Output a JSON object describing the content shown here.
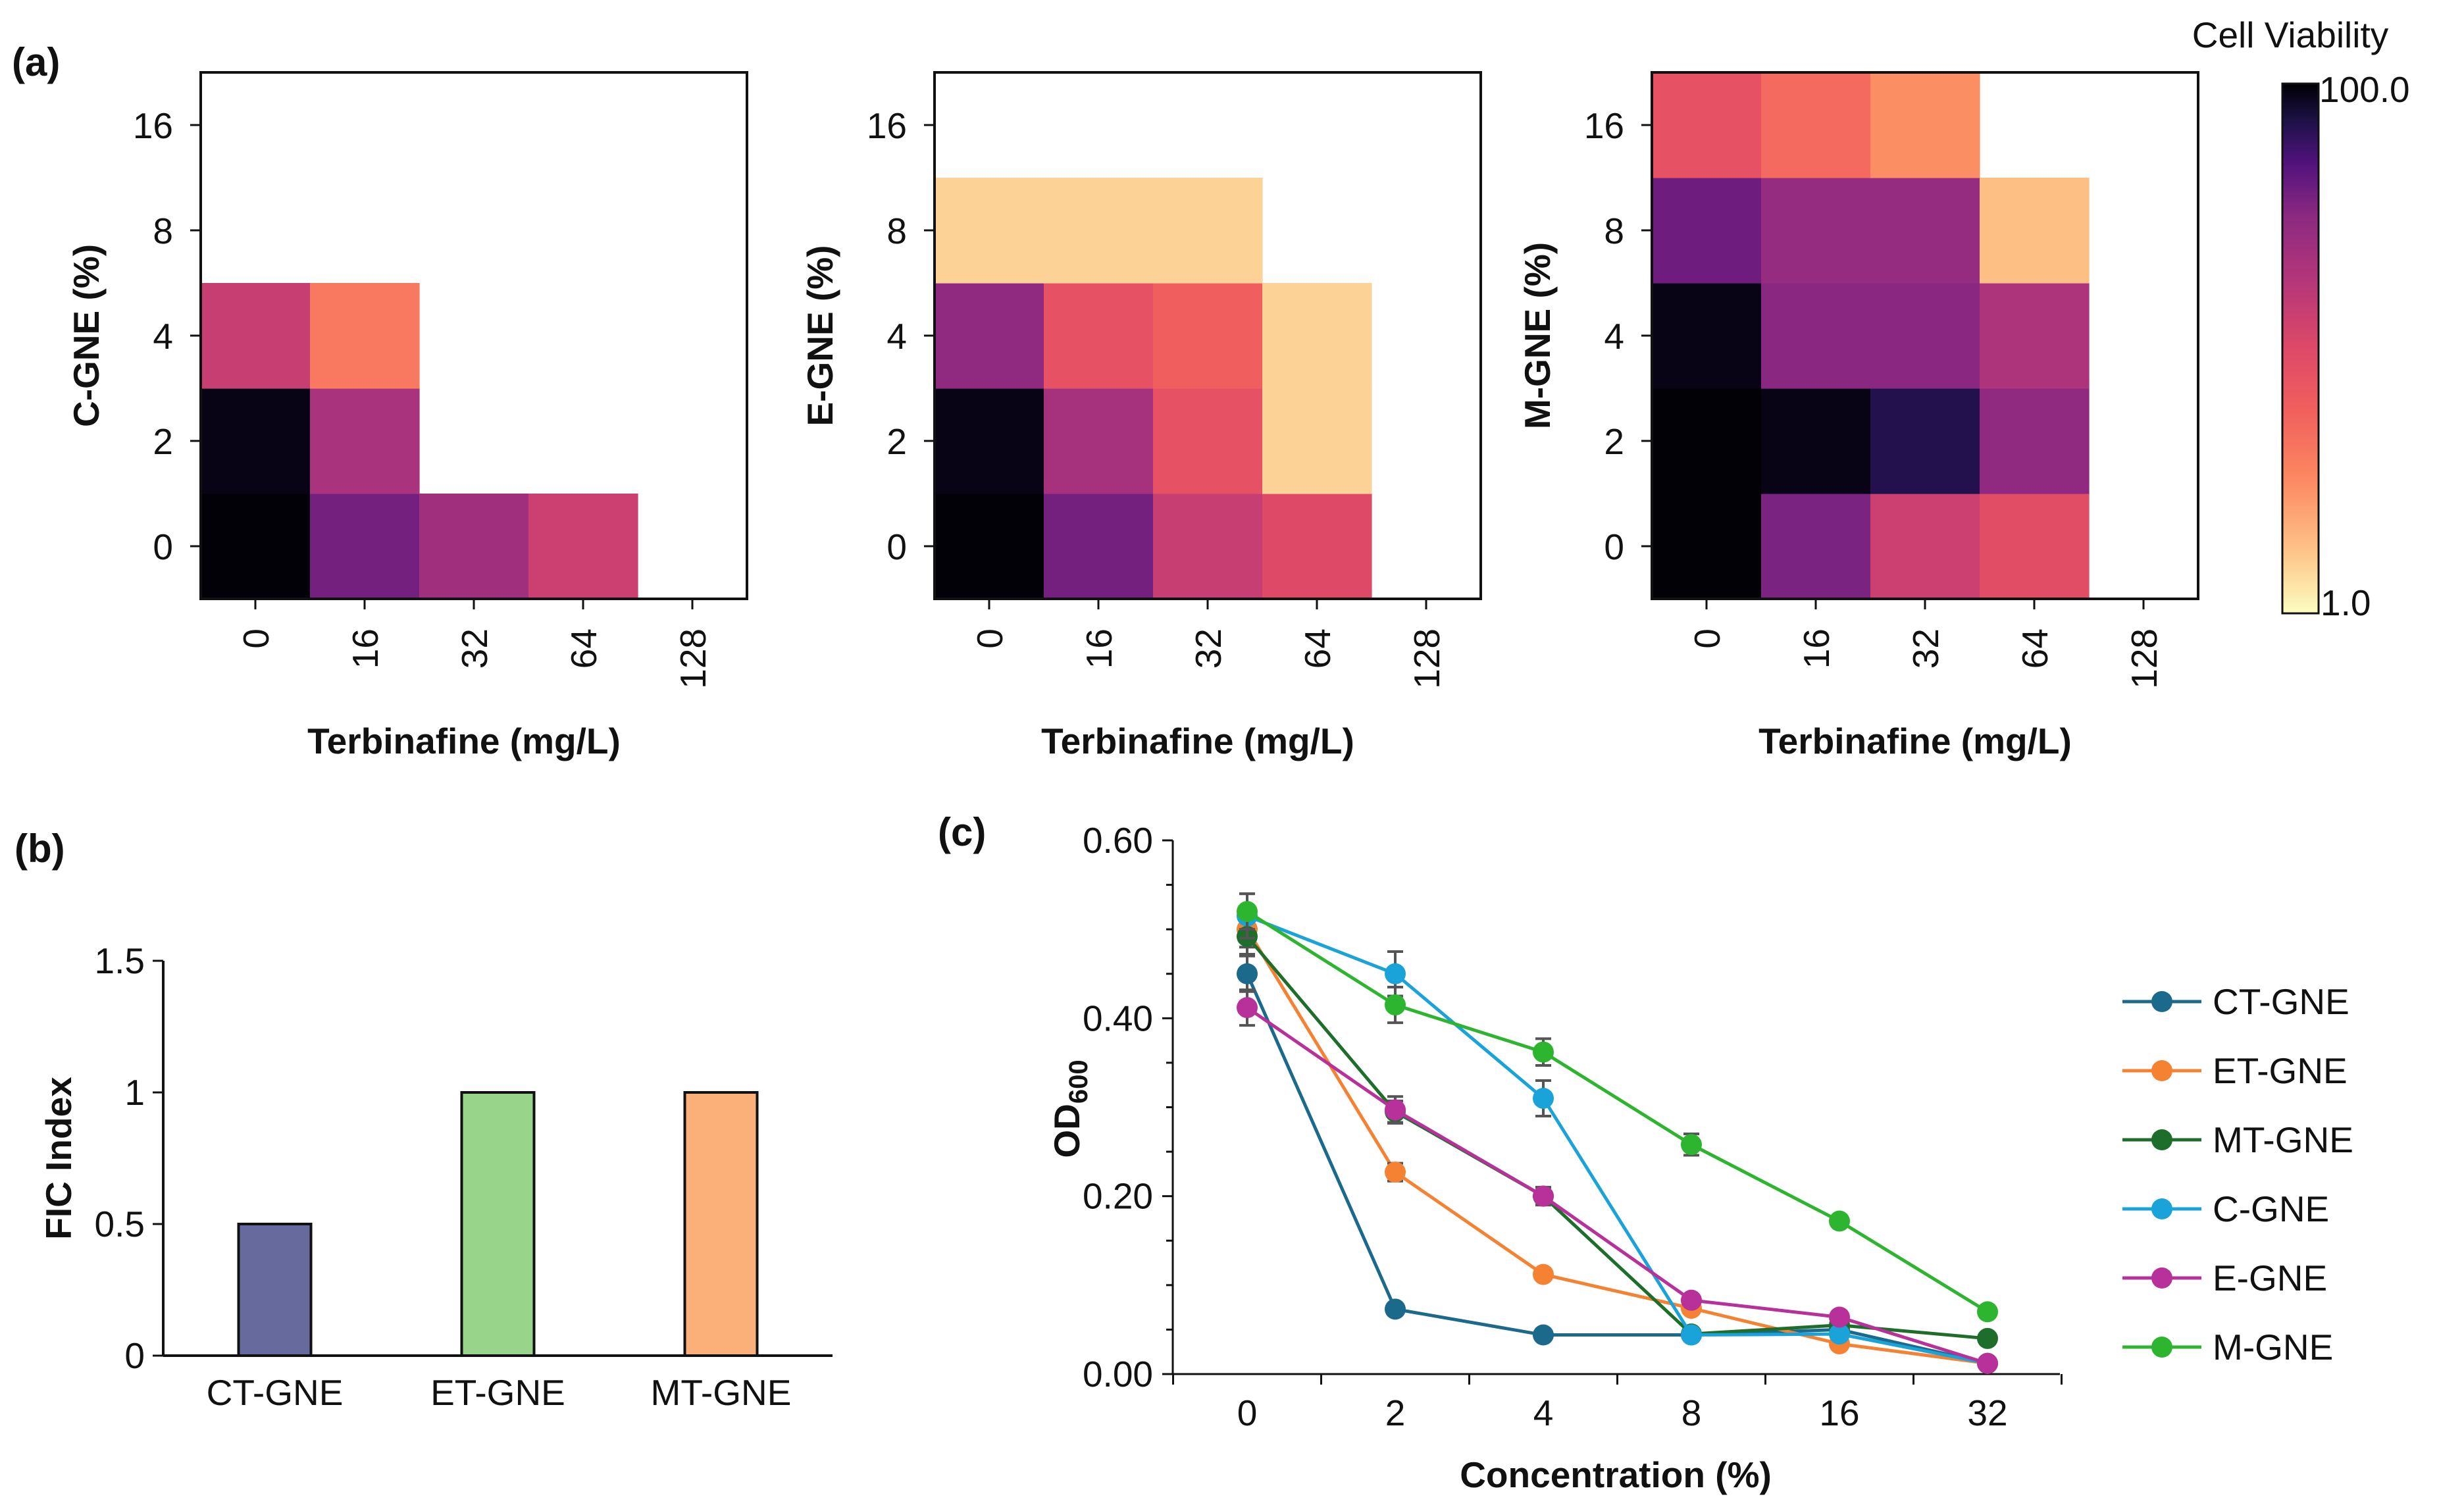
{
  "colors": {
    "ct": "#1b6a8c",
    "et": "#f58233",
    "mt": "#1e6e2b",
    "c": "#1aa3d8",
    "e": "#b8309a",
    "m": "#2db52f",
    "bar_ct": "#666a9c",
    "bar_et": "#98d48a",
    "bar_mt": "#fbb07a",
    "err": "#555555"
  },
  "panel_labels": {
    "a": "(a)",
    "b": "(b)",
    "c": "(c)"
  },
  "colorbar": {
    "title": "Cell Viability",
    "max_label": "100.0",
    "min_label": "1.0",
    "colormap": "magma"
  },
  "chart_data": [
    {
      "id": "heatmap-c",
      "type": "heatmap",
      "xlabel": "Terbinafine (mg/L)",
      "ylabel": "C-GNE (%)",
      "x_ticks": [
        "0",
        "16",
        "32",
        "64",
        "128"
      ],
      "y_ticks": [
        "0",
        "2",
        "4",
        "8",
        "16"
      ],
      "value_scale": [
        1,
        100
      ],
      "cells": [
        {
          "x": 0,
          "y": 0,
          "v": 98
        },
        {
          "x": 1,
          "y": 0,
          "v": 38
        },
        {
          "x": 2,
          "y": 0,
          "v": 24
        },
        {
          "x": 3,
          "y": 0,
          "v": 13
        },
        {
          "x": 0,
          "y": 1,
          "v": 92
        },
        {
          "x": 1,
          "y": 1,
          "v": 21
        },
        {
          "x": 0,
          "y": 2,
          "v": 14
        },
        {
          "x": 1,
          "y": 2,
          "v": 4
        }
      ]
    },
    {
      "id": "heatmap-e",
      "type": "heatmap",
      "xlabel": "Terbinafine (mg/L)",
      "ylabel": "E-GNE (%)",
      "x_ticks": [
        "0",
        "16",
        "32",
        "64",
        "128"
      ],
      "y_ticks": [
        "0",
        "2",
        "4",
        "8",
        "16"
      ],
      "value_scale": [
        1,
        100
      ],
      "cells": [
        {
          "x": 0,
          "y": 0,
          "v": 98
        },
        {
          "x": 1,
          "y": 0,
          "v": 38
        },
        {
          "x": 2,
          "y": 0,
          "v": 14
        },
        {
          "x": 3,
          "y": 0,
          "v": 10
        },
        {
          "x": 0,
          "y": 1,
          "v": 92
        },
        {
          "x": 1,
          "y": 1,
          "v": 22
        },
        {
          "x": 2,
          "y": 1,
          "v": 8
        },
        {
          "x": 3,
          "y": 1,
          "v": 1.5
        },
        {
          "x": 0,
          "y": 2,
          "v": 30
        },
        {
          "x": 1,
          "y": 2,
          "v": 8
        },
        {
          "x": 2,
          "y": 2,
          "v": 6
        },
        {
          "x": 3,
          "y": 2,
          "v": 1.5
        },
        {
          "x": 0,
          "y": 3,
          "v": 1.5
        },
        {
          "x": 1,
          "y": 3,
          "v": 1.5
        },
        {
          "x": 2,
          "y": 3,
          "v": 1.5
        }
      ]
    },
    {
      "id": "heatmap-m",
      "type": "heatmap",
      "xlabel": "Terbinafine (mg/L)",
      "ylabel": "M-GNE (%)",
      "x_ticks": [
        "0",
        "16",
        "32",
        "64",
        "128"
      ],
      "y_ticks": [
        "0",
        "2",
        "4",
        "8",
        "16"
      ],
      "value_scale": [
        1,
        100
      ],
      "cells": [
        {
          "x": 0,
          "y": 0,
          "v": 99
        },
        {
          "x": 1,
          "y": 0,
          "v": 36
        },
        {
          "x": 2,
          "y": 0,
          "v": 13
        },
        {
          "x": 3,
          "y": 0,
          "v": 9
        },
        {
          "x": 0,
          "y": 1,
          "v": 99
        },
        {
          "x": 1,
          "y": 1,
          "v": 92
        },
        {
          "x": 2,
          "y": 1,
          "v": 70
        },
        {
          "x": 3,
          "y": 1,
          "v": 30
        },
        {
          "x": 0,
          "y": 2,
          "v": 92
        },
        {
          "x": 1,
          "y": 2,
          "v": 32
        },
        {
          "x": 2,
          "y": 2,
          "v": 32
        },
        {
          "x": 3,
          "y": 2,
          "v": 20
        },
        {
          "x": 0,
          "y": 3,
          "v": 40
        },
        {
          "x": 1,
          "y": 3,
          "v": 28
        },
        {
          "x": 2,
          "y": 3,
          "v": 28
        },
        {
          "x": 3,
          "y": 3,
          "v": 1.8
        },
        {
          "x": 0,
          "y": 4,
          "v": 8
        },
        {
          "x": 1,
          "y": 4,
          "v": 5
        },
        {
          "x": 2,
          "y": 4,
          "v": 3
        }
      ]
    },
    {
      "id": "bar-fic",
      "type": "bar",
      "xlabel": "",
      "ylabel": "FIC Index",
      "categories": [
        "CT-GNE",
        "ET-GNE",
        "MT-GNE"
      ],
      "values": [
        0.5,
        1,
        1
      ],
      "ylim": [
        0,
        1.5
      ],
      "y_ticks": [
        0,
        0.5,
        1,
        1.5
      ],
      "y_tick_labels": [
        "0",
        "0.5",
        "1",
        "1.5"
      ]
    },
    {
      "id": "line-od",
      "type": "line",
      "xlabel": "Concentration (%)",
      "ylabel": "OD600",
      "categories": [
        "0",
        "2",
        "4",
        "8",
        "16",
        "32"
      ],
      "ylim": [
        0,
        0.6
      ],
      "y_ticks": [
        0,
        0.2,
        0.4,
        0.6
      ],
      "y_tick_labels": [
        "0.00",
        "0.20",
        "0.40",
        "0.60"
      ],
      "series": [
        {
          "name": "CT-GNE",
          "color_key": "ct",
          "values": [
            0.45,
            0.073,
            0.044,
            0.044,
            0.05,
            0.012
          ],
          "errors": [
            0.02,
            0.003,
            0.003,
            0.003,
            0.003,
            0.002
          ]
        },
        {
          "name": "ET-GNE",
          "color_key": "et",
          "values": [
            0.5,
            0.227,
            0.112,
            0.074,
            0.034,
            0.012
          ],
          "errors": [
            0.02,
            0.01,
            0.005,
            0.004,
            0.003,
            0.002
          ]
        },
        {
          "name": "MT-GNE",
          "color_key": "mt",
          "values": [
            0.492,
            0.295,
            0.2,
            0.045,
            0.055,
            0.04
          ],
          "errors": [
            0.02,
            0.012,
            0.01,
            0.003,
            0.003,
            0.003
          ]
        },
        {
          "name": "C-GNE",
          "color_key": "c",
          "values": [
            0.515,
            0.45,
            0.31,
            0.044,
            0.045,
            0.012
          ],
          "errors": [
            0.025,
            0.025,
            0.02,
            0.003,
            0.003,
            0.002
          ]
        },
        {
          "name": "E-GNE",
          "color_key": "e",
          "values": [
            0.412,
            0.297,
            0.2,
            0.083,
            0.064,
            0.012
          ],
          "errors": [
            0.02,
            0.015,
            0.01,
            0.004,
            0.003,
            0.002
          ]
        },
        {
          "name": "M-GNE",
          "color_key": "m",
          "values": [
            0.52,
            0.415,
            0.362,
            0.258,
            0.172,
            0.07
          ],
          "errors": [
            0.02,
            0.02,
            0.015,
            0.012,
            0.006,
            0.004
          ]
        }
      ]
    }
  ]
}
